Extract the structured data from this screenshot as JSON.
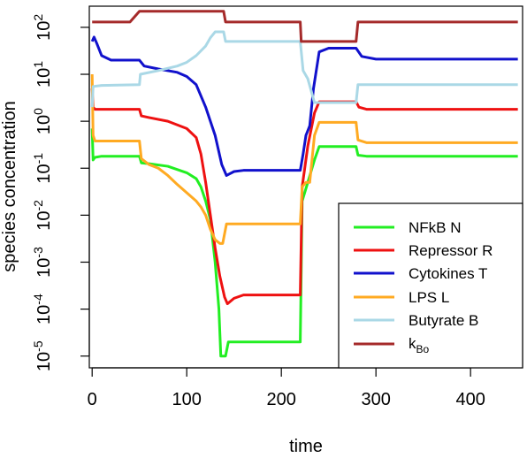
{
  "chart_data": {
    "type": "line",
    "xlabel": "time",
    "ylabel": "species concentration",
    "xlim": [
      -3,
      455
    ],
    "ylim_log10": [
      -5.25,
      2.45
    ],
    "log_y": true,
    "x_ticks": [
      {
        "value": 0,
        "label": "0"
      },
      {
        "value": 100,
        "label": "100"
      },
      {
        "value": 200,
        "label": "200"
      },
      {
        "value": 300,
        "label": "300"
      },
      {
        "value": 400,
        "label": "400"
      }
    ],
    "y_ticks": [
      {
        "exp": 2,
        "label_base": "10",
        "label_exp": "2"
      },
      {
        "exp": 1,
        "label_base": "10",
        "label_exp": "1"
      },
      {
        "exp": 0,
        "label_base": "10",
        "label_exp": "0"
      },
      {
        "exp": -1,
        "label_base": "10",
        "label_exp": "-1"
      },
      {
        "exp": -2,
        "label_base": "10",
        "label_exp": "-2"
      },
      {
        "exp": -3,
        "label_base": "10",
        "label_exp": "-3"
      },
      {
        "exp": -4,
        "label_base": "10",
        "label_exp": "-4"
      },
      {
        "exp": -5,
        "label_base": "10",
        "label_exp": "-5"
      }
    ],
    "legend_position": "bottom-right",
    "series": [
      {
        "key": "nfkb",
        "name": "NFkB N",
        "color": "#22ee22",
        "points": [
          [
            0,
            0.7
          ],
          [
            1,
            0.15
          ],
          [
            3,
            0.17
          ],
          [
            10,
            0.18
          ],
          [
            50,
            0.18
          ],
          [
            52,
            0.13
          ],
          [
            60,
            0.125
          ],
          [
            80,
            0.11
          ],
          [
            100,
            0.08
          ],
          [
            110,
            0.06
          ],
          [
            115,
            0.04
          ],
          [
            120,
            0.02
          ],
          [
            125,
            0.008
          ],
          [
            130,
            0.001
          ],
          [
            134,
            0.0001
          ],
          [
            136,
            1e-05
          ],
          [
            141,
            1e-05
          ],
          [
            144,
            2e-05
          ],
          [
            220,
            2e-05
          ],
          [
            222,
            0.02
          ],
          [
            228,
            0.05
          ],
          [
            235,
            0.15
          ],
          [
            240,
            0.29
          ],
          [
            279,
            0.29
          ],
          [
            281,
            0.19
          ],
          [
            290,
            0.18
          ],
          [
            450,
            0.18
          ]
        ]
      },
      {
        "key": "repressor",
        "name": "Repressor R",
        "color": "#ee1111",
        "points": [
          [
            0,
            5
          ],
          [
            1,
            2
          ],
          [
            3,
            1.8
          ],
          [
            50,
            1.8
          ],
          [
            52,
            1.3
          ],
          [
            60,
            1.2
          ],
          [
            80,
            1.0
          ],
          [
            100,
            0.7
          ],
          [
            110,
            0.45
          ],
          [
            115,
            0.2
          ],
          [
            120,
            0.05
          ],
          [
            125,
            0.01
          ],
          [
            130,
            0.002
          ],
          [
            135,
            0.0005
          ],
          [
            140,
            0.00018
          ],
          [
            143,
            0.00013
          ],
          [
            150,
            0.00017
          ],
          [
            160,
            0.0002
          ],
          [
            220,
            0.0002
          ],
          [
            222,
            0.04
          ],
          [
            228,
            0.3
          ],
          [
            235,
            1.5
          ],
          [
            240,
            2.6
          ],
          [
            279,
            2.6
          ],
          [
            282,
            2.0
          ],
          [
            290,
            1.8
          ],
          [
            450,
            1.8
          ]
        ]
      },
      {
        "key": "cytokines",
        "name": "Cytokines T",
        "color": "#1111cc",
        "points": [
          [
            0,
            50
          ],
          [
            2,
            62
          ],
          [
            5,
            45
          ],
          [
            10,
            25
          ],
          [
            20,
            20
          ],
          [
            50,
            20
          ],
          [
            55,
            15
          ],
          [
            70,
            13
          ],
          [
            90,
            11
          ],
          [
            100,
            9
          ],
          [
            110,
            6
          ],
          [
            120,
            2
          ],
          [
            130,
            0.5
          ],
          [
            137,
            0.12
          ],
          [
            142,
            0.07
          ],
          [
            150,
            0.085
          ],
          [
            160,
            0.09
          ],
          [
            220,
            0.09
          ],
          [
            223,
            0.2
          ],
          [
            226,
            0.5
          ],
          [
            230,
            0.8
          ],
          [
            234,
            5
          ],
          [
            240,
            30
          ],
          [
            250,
            36
          ],
          [
            279,
            36
          ],
          [
            285,
            24
          ],
          [
            300,
            21
          ],
          [
            450,
            21
          ]
        ]
      },
      {
        "key": "lps",
        "name": "LPS L",
        "color": "#ffaa22",
        "points": [
          [
            0,
            10
          ],
          [
            1,
            0.5
          ],
          [
            3,
            0.38
          ],
          [
            50,
            0.38
          ],
          [
            52,
            0.16
          ],
          [
            60,
            0.12
          ],
          [
            70,
            0.1
          ],
          [
            80,
            0.07
          ],
          [
            90,
            0.045
          ],
          [
            100,
            0.03
          ],
          [
            110,
            0.02
          ],
          [
            115,
            0.015
          ],
          [
            120,
            0.01
          ],
          [
            125,
            0.005
          ],
          [
            130,
            0.003
          ],
          [
            135,
            0.0025
          ],
          [
            138,
            0.0025
          ],
          [
            142,
            0.0065
          ],
          [
            150,
            0.0065
          ],
          [
            220,
            0.0065
          ],
          [
            222,
            0.04
          ],
          [
            226,
            0.05
          ],
          [
            230,
            0.05
          ],
          [
            235,
            0.5
          ],
          [
            240,
            0.95
          ],
          [
            279,
            0.95
          ],
          [
            281,
            0.4
          ],
          [
            290,
            0.35
          ],
          [
            450,
            0.35
          ]
        ]
      },
      {
        "key": "butyrate",
        "name": "Butyrate B",
        "color": "#aad8e6",
        "points": [
          [
            0,
            2
          ],
          [
            1,
            5.5
          ],
          [
            10,
            5.8
          ],
          [
            50,
            6
          ],
          [
            51,
            10
          ],
          [
            70,
            12
          ],
          [
            90,
            15
          ],
          [
            100,
            18
          ],
          [
            110,
            25
          ],
          [
            120,
            40
          ],
          [
            125,
            60
          ],
          [
            130,
            80
          ],
          [
            139,
            80
          ],
          [
            141,
            50
          ],
          [
            220,
            50
          ],
          [
            223,
            12
          ],
          [
            228,
            8
          ],
          [
            235,
            2.5
          ],
          [
            240,
            2.5
          ],
          [
            279,
            2.5
          ],
          [
            281,
            6
          ],
          [
            450,
            6
          ]
        ]
      },
      {
        "key": "kbo",
        "name": "k",
        "sub": "Bo",
        "color": "#a52a2a",
        "points": [
          [
            0,
            130
          ],
          [
            40,
            130
          ],
          [
            50,
            220
          ],
          [
            139,
            220
          ],
          [
            141,
            130
          ],
          [
            220,
            130
          ],
          [
            221,
            50
          ],
          [
            279,
            50
          ],
          [
            281,
            130
          ],
          [
            450,
            130
          ]
        ]
      }
    ]
  }
}
